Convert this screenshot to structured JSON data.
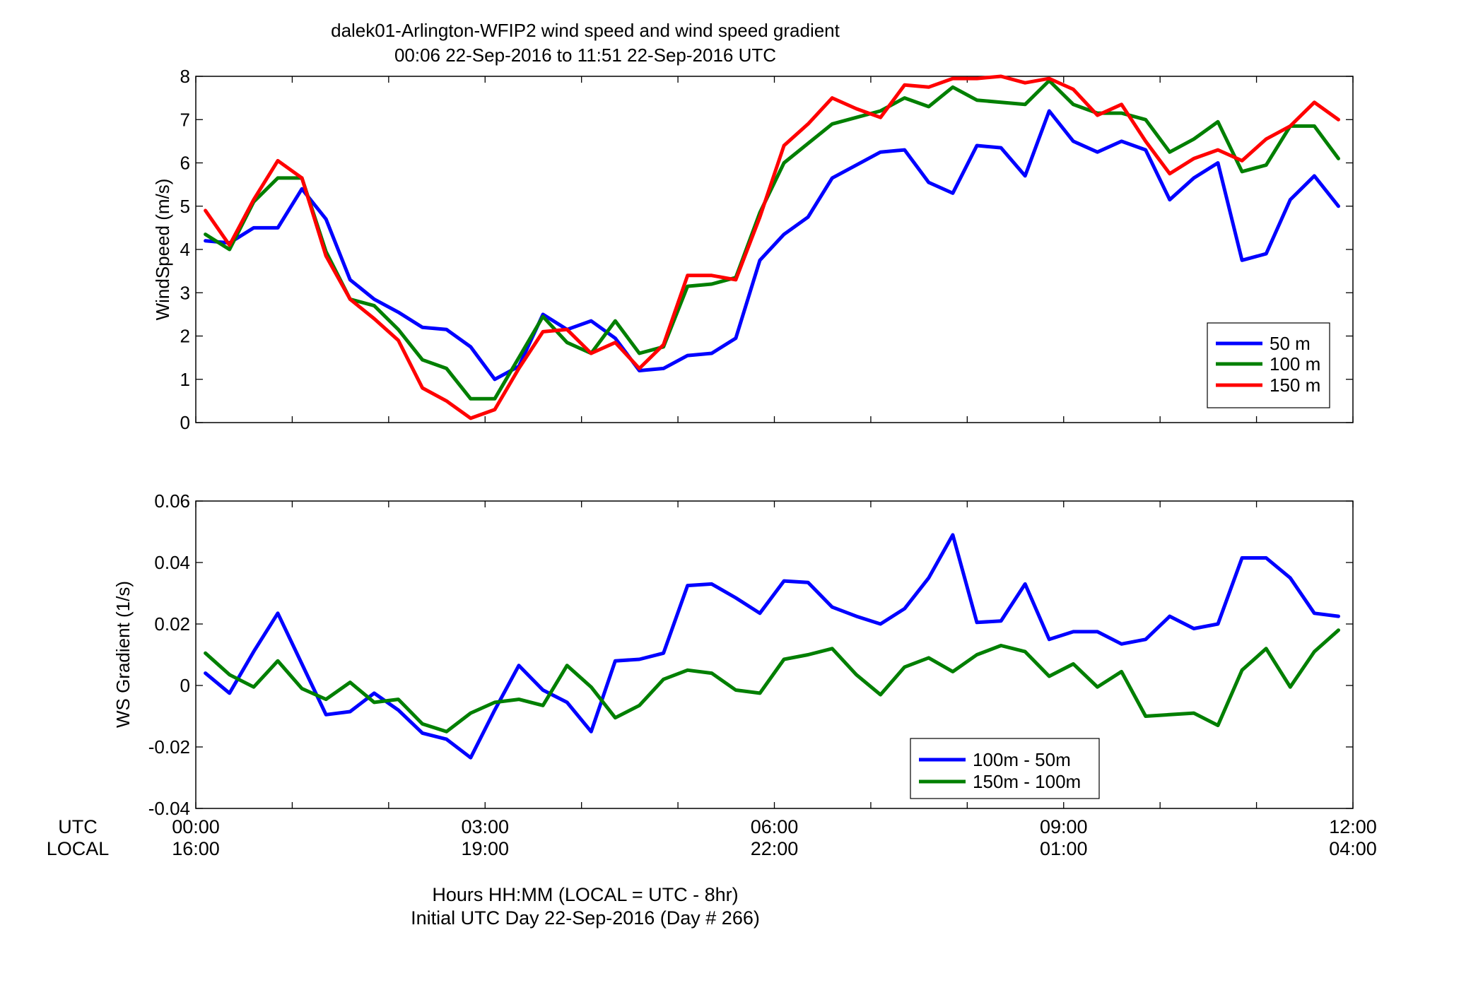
{
  "title_line1": "dalek01-Arlington-WFIP2  wind speed and wind speed gradient",
  "title_line2": "00:06 22-Sep-2016 to 11:51 22-Sep-2016  UTC",
  "row_label_utc": "UTC",
  "row_label_local": "LOCAL",
  "x_tick_labels_utc": [
    "00:00",
    "03:00",
    "06:00",
    "09:00",
    "12:00"
  ],
  "x_tick_labels_local": [
    "16:00",
    "19:00",
    "22:00",
    "01:00",
    "04:00"
  ],
  "xlabel_line1": "Hours HH:MM  (LOCAL = UTC - 8hr)",
  "xlabel_line2": "Initial UTC Day 22-Sep-2016 (Day # 266)",
  "colors": {
    "blue": "#0000ff",
    "green": "#007f00",
    "red": "#ff0000"
  },
  "chart_data": [
    {
      "type": "line",
      "title": "",
      "xlabel": "",
      "ylabel": "WindSpeed (m/s)",
      "xlim": [
        0,
        12
      ],
      "ylim": [
        0,
        8
      ],
      "yticks": [
        0,
        1,
        2,
        3,
        4,
        5,
        6,
        7,
        8
      ],
      "legend_position": "lower-right",
      "grid": false,
      "x": [
        0.1,
        0.35,
        0.6,
        0.85,
        1.1,
        1.35,
        1.6,
        1.85,
        2.1,
        2.35,
        2.6,
        2.85,
        3.1,
        3.35,
        3.6,
        3.85,
        4.1,
        4.35,
        4.6,
        4.85,
        5.1,
        5.35,
        5.6,
        5.85,
        6.1,
        6.35,
        6.6,
        6.85,
        7.1,
        7.35,
        7.6,
        7.85,
        8.1,
        8.35,
        8.6,
        8.85,
        9.1,
        9.35,
        9.6,
        9.85,
        10.1,
        10.35,
        10.6,
        10.85,
        11.1,
        11.35,
        11.6,
        11.85
      ],
      "series": [
        {
          "name": "50 m",
          "color": "#0000ff",
          "values": [
            4.2,
            4.15,
            4.5,
            4.5,
            5.4,
            4.7,
            3.3,
            2.85,
            2.55,
            2.2,
            2.15,
            1.75,
            1.0,
            1.3,
            2.5,
            2.15,
            2.35,
            1.95,
            1.2,
            1.25,
            1.55,
            1.6,
            1.95,
            3.75,
            4.35,
            4.75,
            5.65,
            5.95,
            6.25,
            6.3,
            5.55,
            5.3,
            6.4,
            6.35,
            5.7,
            7.2,
            6.5,
            6.25,
            6.5,
            6.3,
            5.15,
            5.65,
            6.0,
            3.75,
            3.9,
            5.15,
            5.7,
            5.0
          ]
        },
        {
          "name": "100 m",
          "color": "#007f00",
          "values": [
            4.35,
            4.0,
            5.1,
            5.65,
            5.65,
            3.95,
            2.85,
            2.7,
            2.15,
            1.45,
            1.25,
            0.55,
            0.55,
            1.5,
            2.45,
            1.85,
            1.6,
            2.35,
            1.6,
            1.75,
            3.15,
            3.2,
            3.35,
            4.85,
            6.0,
            6.45,
            6.9,
            7.05,
            7.2,
            7.5,
            7.3,
            7.75,
            7.45,
            7.4,
            7.35,
            7.9,
            7.35,
            7.15,
            7.15,
            7.0,
            6.25,
            6.55,
            6.95,
            5.8,
            5.95,
            6.85,
            6.85,
            6.1
          ]
        },
        {
          "name": "150 m",
          "color": "#ff0000",
          "values": [
            4.9,
            4.1,
            5.15,
            6.05,
            5.65,
            3.85,
            2.85,
            2.4,
            1.9,
            0.8,
            0.5,
            0.1,
            0.3,
            1.25,
            2.1,
            2.15,
            1.6,
            1.85,
            1.25,
            1.8,
            3.4,
            3.4,
            3.3,
            4.75,
            6.4,
            6.9,
            7.5,
            7.25,
            7.05,
            7.8,
            7.75,
            7.95,
            7.95,
            8.0,
            7.85,
            7.95,
            7.7,
            7.1,
            7.35,
            6.5,
            5.75,
            6.1,
            6.3,
            6.05,
            6.55,
            6.85,
            7.4,
            7.0
          ]
        }
      ]
    },
    {
      "type": "line",
      "title": "",
      "xlabel": "",
      "ylabel": "WS Gradient (1/s)",
      "xlim": [
        0,
        12
      ],
      "ylim": [
        -0.04,
        0.06
      ],
      "yticks": [
        -0.04,
        -0.02,
        0,
        0.02,
        0.04,
        0.06
      ],
      "legend_position": "lower-center",
      "grid": false,
      "x": [
        0.1,
        0.35,
        0.6,
        0.85,
        1.1,
        1.35,
        1.6,
        1.85,
        2.1,
        2.35,
        2.6,
        2.85,
        3.1,
        3.35,
        3.6,
        3.85,
        4.1,
        4.35,
        4.6,
        4.85,
        5.1,
        5.35,
        5.6,
        5.85,
        6.1,
        6.35,
        6.6,
        6.85,
        7.1,
        7.35,
        7.6,
        7.85,
        8.1,
        8.35,
        8.6,
        8.85,
        9.1,
        9.35,
        9.6,
        9.85,
        10.1,
        10.35,
        10.6,
        10.85,
        11.1,
        11.35,
        11.6,
        11.85
      ],
      "series": [
        {
          "name": "100m - 50m",
          "color": "#0000ff",
          "values": [
            0.004,
            -0.0025,
            0.011,
            0.0235,
            0.007,
            -0.0095,
            -0.0085,
            -0.0025,
            -0.008,
            -0.0155,
            -0.0175,
            -0.0235,
            -0.008,
            0.0065,
            -0.0015,
            -0.0055,
            -0.015,
            0.008,
            0.0085,
            0.0105,
            0.0325,
            0.033,
            0.0285,
            0.0235,
            0.034,
            0.0335,
            0.0255,
            0.0225,
            0.02,
            0.025,
            0.035,
            0.049,
            0.0205,
            0.021,
            0.033,
            0.015,
            0.0175,
            0.0175,
            0.0135,
            0.015,
            0.0225,
            0.0185,
            0.02,
            0.0415,
            0.0415,
            0.035,
            0.0235,
            0.0225
          ]
        },
        {
          "name": "150m - 100m",
          "color": "#007f00",
          "values": [
            0.0105,
            0.0035,
            -0.0005,
            0.008,
            -0.001,
            -0.0045,
            0.001,
            -0.0055,
            -0.0045,
            -0.0125,
            -0.015,
            -0.009,
            -0.0055,
            -0.0045,
            -0.0065,
            0.0065,
            -0.0005,
            -0.0105,
            -0.0065,
            0.002,
            0.005,
            0.004,
            -0.0015,
            -0.0025,
            0.0085,
            0.01,
            0.012,
            0.0035,
            -0.003,
            0.006,
            0.009,
            0.0045,
            0.01,
            0.013,
            0.011,
            0.003,
            0.007,
            -0.0005,
            0.0045,
            -0.01,
            -0.0095,
            -0.009,
            -0.013,
            0.005,
            0.012,
            -0.0005,
            0.011,
            0.018
          ]
        }
      ]
    }
  ]
}
